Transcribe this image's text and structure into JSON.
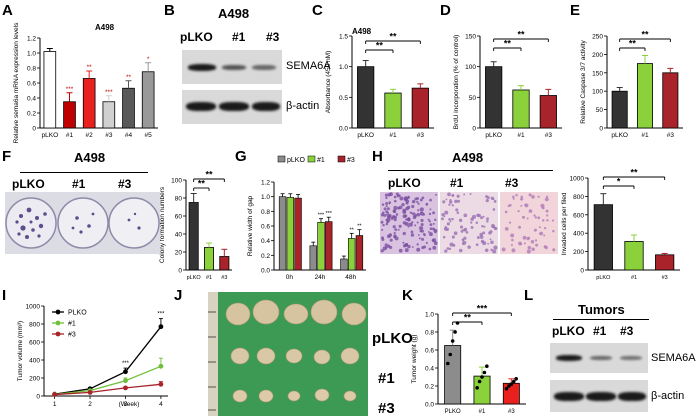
{
  "panels": {
    "A": {
      "label": "A",
      "title": "A498",
      "ylabel": "Relative sema6a mRNA expression levels",
      "chart_data": {
        "type": "bar",
        "categories": [
          "pLKO",
          "#1",
          "#2",
          "#3",
          "#4",
          "#5"
        ],
        "values": [
          1.02,
          0.35,
          0.66,
          0.35,
          0.53,
          0.75
        ],
        "errors": [
          0.04,
          0.12,
          0.1,
          0.08,
          0.1,
          0.12
        ],
        "significance": [
          "",
          "***",
          "**",
          "***",
          "**",
          "*"
        ],
        "colors": [
          "#ffffff",
          "#c00000",
          "#e8211f",
          "#d0d0d0",
          "#595959",
          "#999999"
        ],
        "ylim": [
          0,
          1.2
        ],
        "yticks": [
          "0",
          "0.2",
          "0.4",
          "0.6",
          "0.8",
          "1.0",
          "1.2"
        ]
      }
    },
    "B": {
      "label": "B",
      "title": "A498",
      "lanes": [
        "pLKO",
        "#1",
        "#3"
      ],
      "rows": [
        "SEMA6A",
        "β-actin"
      ]
    },
    "C": {
      "label": "C",
      "title": "A498",
      "ylabel": "Absorbance (450 nM)",
      "chart_data": {
        "type": "bar",
        "categories": [
          "pLKO",
          "#1",
          "#3"
        ],
        "values": [
          1.0,
          0.57,
          0.65
        ],
        "errors": [
          0.1,
          0.06,
          0.07
        ],
        "colors": [
          "#333333",
          "#8ad13c",
          "#a8232a"
        ],
        "ylim": [
          0,
          1.5
        ],
        "yticks": [
          "0.0",
          "0.5",
          "1.0",
          "1.5"
        ],
        "brackets": [
          [
            "pLKO",
            "#1",
            "**"
          ],
          [
            "pLKO",
            "#3",
            "**"
          ]
        ]
      }
    },
    "D": {
      "label": "D",
      "ylabel": "BrdU incorporation (% of control)",
      "chart_data": {
        "type": "bar",
        "categories": [
          "pLKO",
          "#1",
          "#3"
        ],
        "values": [
          100,
          62,
          53
        ],
        "errors": [
          8,
          7,
          10
        ],
        "colors": [
          "#333333",
          "#8ad13c",
          "#a8232a"
        ],
        "ylim": [
          0,
          150
        ],
        "yticks": [
          "0",
          "50",
          "100",
          "150"
        ],
        "brackets": [
          [
            "pLKO",
            "#1",
            "**"
          ],
          [
            "pLKO",
            "#3",
            "**"
          ]
        ]
      }
    },
    "E": {
      "label": "E",
      "ylabel": "Relative Caspase 3/7 activity",
      "chart_data": {
        "type": "bar",
        "categories": [
          "pLKO",
          "#1",
          "#3"
        ],
        "values": [
          100,
          175,
          150
        ],
        "errors": [
          10,
          22,
          12
        ],
        "colors": [
          "#333333",
          "#8ad13c",
          "#a8232a"
        ],
        "ylim": [
          0,
          250
        ],
        "yticks": [
          "0",
          "50",
          "100",
          "150",
          "200",
          "250"
        ],
        "brackets": [
          [
            "pLKO",
            "#1",
            "**"
          ],
          [
            "pLKO",
            "#3",
            "**"
          ]
        ]
      }
    },
    "F": {
      "label": "F",
      "title": "A498",
      "lanes": [
        "pLKO",
        "#1",
        "#3"
      ],
      "ylabel": "Colony formation numbers",
      "chart_data": {
        "type": "bar",
        "categories": [
          "pLKO",
          "#1",
          "#3"
        ],
        "values": [
          75,
          25,
          15
        ],
        "errors": [
          10,
          5,
          8
        ],
        "colors": [
          "#333333",
          "#8ad13c",
          "#a8232a"
        ],
        "ylim": [
          0,
          100
        ],
        "yticks": [
          "0",
          "20",
          "40",
          "60",
          "80",
          "100"
        ],
        "brackets": [
          [
            "pLKO",
            "#1",
            "**"
          ],
          [
            "pLKO",
            "#3",
            "**"
          ]
        ]
      }
    },
    "G": {
      "label": "G",
      "ylabel": "Relative width of gap",
      "chart_data": {
        "type": "bar",
        "categories": [
          "0h",
          "24h",
          "48h"
        ],
        "series": [
          {
            "name": "pLKO",
            "values": [
              1.0,
              0.33,
              0.15
            ],
            "errors": [
              0.04,
              0.05,
              0.04
            ],
            "color": "#8c8c8c"
          },
          {
            "name": "#1",
            "values": [
              0.99,
              0.65,
              0.43
            ],
            "errors": [
              0.05,
              0.05,
              0.07
            ],
            "color": "#8ad13c"
          },
          {
            "name": "#3",
            "values": [
              0.98,
              0.66,
              0.47
            ],
            "errors": [
              0.05,
              0.06,
              0.08
            ],
            "color": "#a8232a"
          }
        ],
        "significance": [
          [
            "",
            "",
            ""
          ],
          [
            "",
            "***",
            "***"
          ],
          [
            "",
            "**",
            "**"
          ]
        ],
        "ylim": [
          0,
          1.2
        ],
        "yticks": [
          "0.0",
          "0.2",
          "0.4",
          "0.6",
          "0.8",
          "1.0",
          "1.2"
        ]
      }
    },
    "H": {
      "label": "H",
      "title": "A498",
      "lanes": [
        "pLKO",
        "#1",
        "#3"
      ],
      "ylabel": "Invaded cells per filed",
      "chart_data": {
        "type": "bar",
        "categories": [
          "pLKO",
          "#1",
          "#3"
        ],
        "values": [
          710,
          310,
          165
        ],
        "errors": [
          120,
          70,
          15
        ],
        "colors": [
          "#333333",
          "#8ad13c",
          "#a8232a"
        ],
        "ylim": [
          0,
          1000
        ],
        "yticks": [
          "0",
          "200",
          "400",
          "600",
          "800",
          "1000"
        ],
        "brackets": [
          [
            "pLKO",
            "#1",
            "*"
          ],
          [
            "pLKO",
            "#3",
            "**"
          ]
        ]
      }
    },
    "I": {
      "label": "I",
      "ylabel": "Tumor volume (mm³)",
      "xlabel": "(Week)",
      "chart_data": {
        "type": "line",
        "x": [
          1,
          2,
          3,
          4
        ],
        "series": [
          {
            "name": "PLKO",
            "values": [
              20,
              80,
              270,
              770
            ],
            "errors": [
              5,
              15,
              40,
              90
            ],
            "color": "#000000"
          },
          {
            "name": "#1",
            "values": [
              18,
              60,
              170,
              330
            ],
            "errors": [
              5,
              12,
              30,
              90
            ],
            "color": "#6fbf3a"
          },
          {
            "name": "#3",
            "values": [
              16,
              40,
              90,
              130
            ],
            "errors": [
              4,
              10,
              15,
              30
            ],
            "color": "#a8232a"
          }
        ],
        "significance": [
          "",
          "",
          "***",
          "***"
        ],
        "ylim": [
          0,
          1000
        ],
        "yticks": [
          "0",
          "200",
          "400",
          "600",
          "800",
          "1000"
        ]
      }
    },
    "J": {
      "label": "J",
      "rows": [
        "pLKO",
        "#1",
        "#3"
      ]
    },
    "K": {
      "label": "K",
      "ylabel": "Tumor weight (g)",
      "chart_data": {
        "type": "bar",
        "categories": [
          "PLKO",
          "#1",
          "#3"
        ],
        "values": [
          0.65,
          0.31,
          0.23
        ],
        "errors": [
          0.17,
          0.1,
          0.05
        ],
        "points": [
          [
            0.45,
            0.55,
            0.7,
            0.8,
            0.9
          ],
          [
            0.18,
            0.25,
            0.3,
            0.35,
            0.42
          ],
          [
            0.17,
            0.2,
            0.22,
            0.25,
            0.28
          ]
        ],
        "colors": [
          "#8c8c8c",
          "#8ad13c",
          "#e8211f"
        ],
        "ylim": [
          0,
          1.0
        ],
        "yticks": [
          "0.0",
          "0.2",
          "0.4",
          "0.6",
          "0.8",
          "1.0"
        ],
        "brackets": [
          [
            "PLKO",
            "#1",
            "**"
          ],
          [
            "PLKO",
            "#3",
            "***"
          ]
        ]
      }
    },
    "L": {
      "label": "L",
      "title": "Tumors",
      "lanes": [
        "pLKO",
        "#1",
        "#3"
      ],
      "rows": [
        "SEMA6A",
        "β-actin"
      ]
    }
  }
}
